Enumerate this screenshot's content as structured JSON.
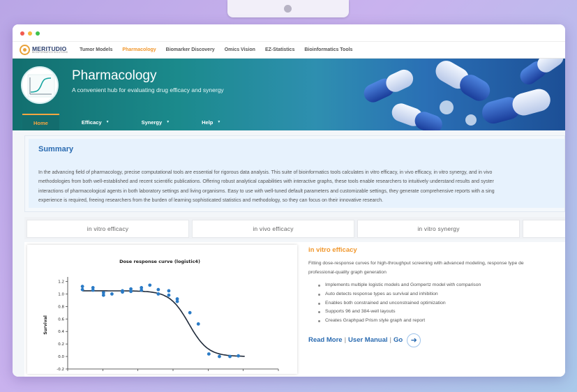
{
  "brand": {
    "name": "MERITUDIO",
    "tagline": "BIOINFORMATICS SOLUTIONS",
    "accent": "#f1972c",
    "primary": "#2a6bb1"
  },
  "topnav": [
    {
      "label": "Tumor Models",
      "active": false
    },
    {
      "label": "Pharmacology",
      "active": true
    },
    {
      "label": "Biomarker Discovery",
      "active": false
    },
    {
      "label": "Omics Vision",
      "active": false
    },
    {
      "label": "EZ-Statistics",
      "active": false
    },
    {
      "label": "Bioinformatics Tools",
      "active": false
    }
  ],
  "hero": {
    "title": "Pharmacology",
    "subtitle": "A convenient hub for evaluating drug efficacy and synergy"
  },
  "subnav": [
    {
      "label": "Home",
      "active": true,
      "dropdown": false
    },
    {
      "label": "Efficacy",
      "active": false,
      "dropdown": true
    },
    {
      "label": "Synergy",
      "active": false,
      "dropdown": true
    },
    {
      "label": "Help",
      "active": false,
      "dropdown": true
    }
  ],
  "summary": {
    "title": "Summary",
    "lines": [
      "In the advancing field of pharmacology, precise computational tools are essential for rigorous data analysis. This suite of bioinformatics tools calculates in vitro efficacy, in vivo efficacy, in vitro synergy, and in vivo",
      "methodologies from both well-established and recent scientific publications. Offering robust analytical capabilities with interactive graphs, these tools enable researchers to intuitively understand results and syster",
      "interactions of pharmacological agents in both laboratory settings and living organisms. Easy to use with well-tuned default parameters and customizable settings, they generate comprehensive reports with a sing",
      "experience is required, freeing researchers from the burden of learning sophisticated statistics and methodology, so they can focus on their innovative research."
    ]
  },
  "tabs": [
    "in vitro efficacy",
    "in vivo efficacy",
    "in vitro synergy",
    ""
  ],
  "chart": {
    "title": "Dose response curve (logistic4)",
    "ylabel": "Survival",
    "yticks": [
      "1.2",
      "1.0",
      "0.8",
      "0.6",
      "0.4",
      "0.2",
      "0.0",
      "-0.2"
    ],
    "point_color": "#2b7bc6",
    "curve_color": "#1f2a3a"
  },
  "chart_data": {
    "type": "scatter",
    "title": "Dose response curve (logistic4)",
    "xlabel": "",
    "ylabel": "Survival",
    "ylim": [
      -0.2,
      1.25
    ],
    "xlim": [
      0,
      1
    ],
    "x_ticks_labeled": false,
    "series": [
      {
        "values": [
          [
            0.07,
            1.12
          ],
          [
            0.07,
            1.07
          ],
          [
            0.12,
            1.1
          ],
          [
            0.12,
            1.06
          ],
          [
            0.17,
            1.02
          ],
          [
            0.17,
            0.98
          ],
          [
            0.21,
            1.0
          ],
          [
            0.26,
            1.05
          ],
          [
            0.26,
            1.03
          ],
          [
            0.3,
            1.08
          ],
          [
            0.3,
            1.04
          ],
          [
            0.35,
            1.1
          ],
          [
            0.35,
            1.06
          ],
          [
            0.39,
            1.14
          ],
          [
            0.43,
            1.07
          ],
          [
            0.43,
            1.0
          ],
          [
            0.48,
            1.05
          ],
          [
            0.48,
            0.98
          ],
          [
            0.52,
            0.92
          ],
          [
            0.52,
            0.88
          ],
          [
            0.58,
            0.7
          ],
          [
            0.62,
            0.52
          ],
          [
            0.67,
            0.04
          ],
          [
            0.72,
            0.0
          ],
          [
            0.77,
            0.0
          ],
          [
            0.81,
            0.01
          ]
        ]
      },
      {
        "curve": "logistic4",
        "top": 1.05,
        "bottom": 0.0,
        "ec50_x": 0.575,
        "hill": 22
      }
    ],
    "grid": false,
    "legend": "none"
  },
  "info": {
    "title": "in vitro efficacy",
    "desc_lines": [
      "Fitting dose-response curves for high-throughput screening with advanced modeling, response type de",
      "professional-quality graph generation"
    ],
    "bullets": [
      "Implements multiple logistic models and Gompertz model with comparison",
      "Auto detects response types as survival and inhibition",
      "Enables both constrained and unconstrained optimization",
      "Supports 96 and 384-well layouts",
      "Creates Graphpad Prism style graph and report"
    ],
    "read_more": "Read More",
    "user_manual": "User Manual",
    "go": "Go",
    "sep": "|"
  }
}
